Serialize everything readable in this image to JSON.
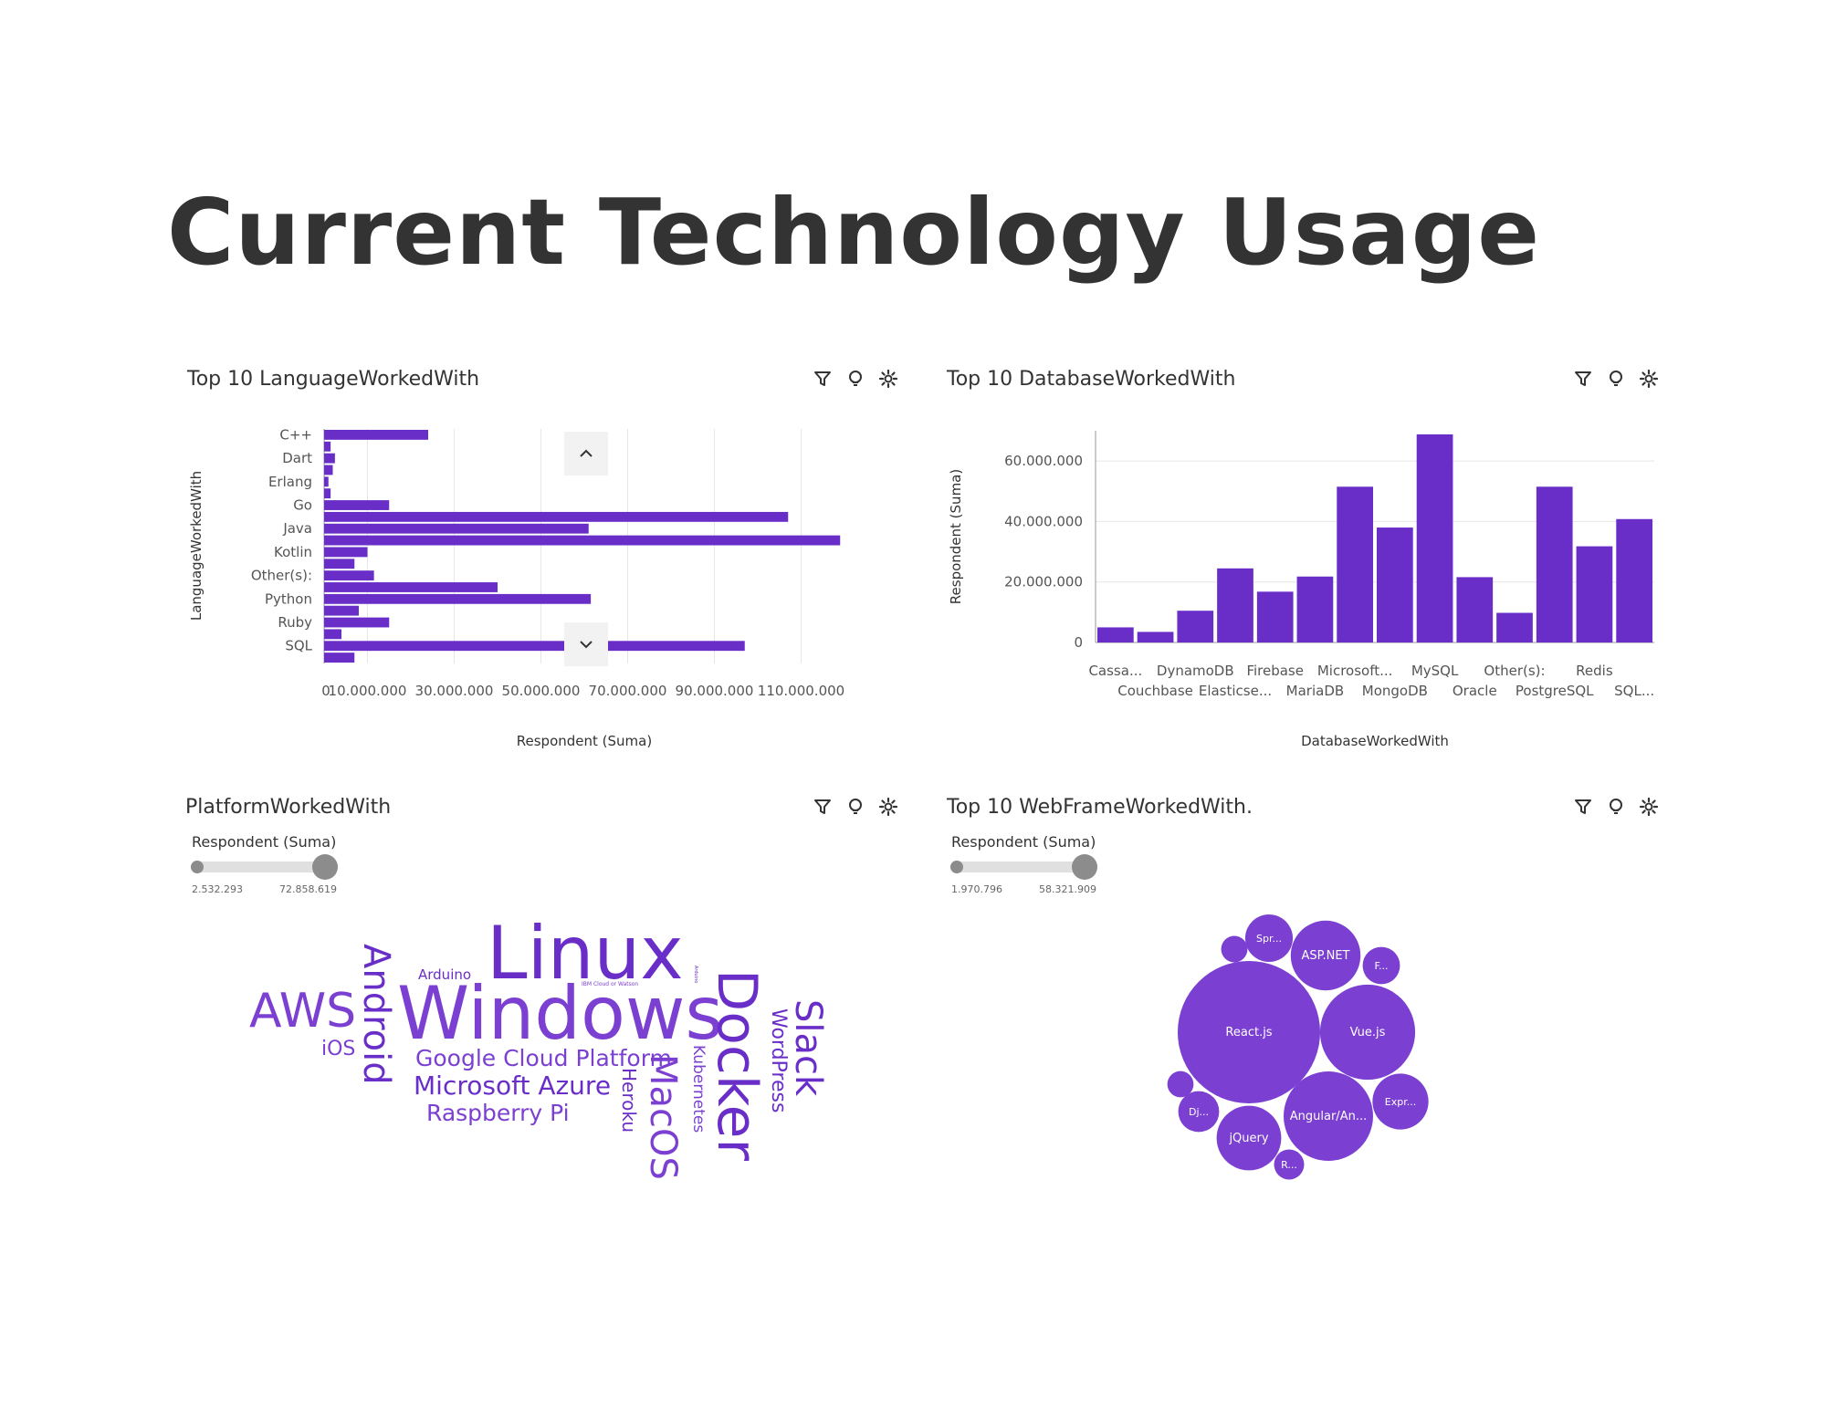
{
  "page": {
    "title": "Current Technology Usage"
  },
  "colors": {
    "accent": "#6a2ec8",
    "accent_light": "#7b3fd1",
    "grid": "#e6e6e6",
    "axis": "#999999"
  },
  "icons": [
    "filter-icon",
    "lightbulb-icon",
    "settings-gear-icon"
  ],
  "chart_data": [
    {
      "type": "bar",
      "orientation": "horizontal",
      "title": "Top 10 LanguageWorkedWith",
      "xlabel": "Respondent (Suma)",
      "ylabel": "LanguageWorkedWith",
      "categories": [
        "C++",
        "",
        "Dart",
        "",
        "Erlang",
        "",
        "Go",
        "",
        "Java",
        "",
        "Kotlin",
        "",
        "Other(s):",
        "",
        "Python",
        "",
        "Ruby",
        "",
        "SQL",
        ""
      ],
      "values": [
        24000000,
        1500000,
        2500000,
        2000000,
        1000000,
        1500000,
        15000000,
        107000000,
        61000000,
        119000000,
        10000000,
        7000000,
        11500000,
        40000000,
        61500000,
        8000000,
        15000000,
        4000000,
        97000000,
        7000000
      ],
      "xlim": [
        0,
        120000000
      ],
      "xticks": [
        0,
        10000000,
        30000000,
        50000000,
        70000000,
        90000000,
        110000000
      ],
      "xtick_labels": [
        "0",
        "10.000.000",
        "30.000.000",
        "50.000.000",
        "70.000.000",
        "90.000.000",
        "110.000.000"
      ],
      "grid": "vertical"
    },
    {
      "type": "bar",
      "title": "Top 10 DatabaseWorkedWith",
      "xlabel": "DatabaseWorkedWith",
      "ylabel": "Respondent (Suma)",
      "categories": [
        "Cassa...",
        "Couchbase",
        "DynamoDB",
        "Elasticse...",
        "Firebase",
        "MariaDB",
        "Microsoft...",
        "MongoDB",
        "MySQL",
        "Oracle",
        "Other(s):",
        "PostgreSQL",
        "Redis",
        "SQL..."
      ],
      "values": [
        5000000,
        3500000,
        10500000,
        24500000,
        16800000,
        21800000,
        51500000,
        38000000,
        68800000,
        21600000,
        9800000,
        51500000,
        31800000,
        40800000
      ],
      "ylim": [
        0,
        70000000
      ],
      "yticks": [
        0,
        20000000,
        40000000,
        60000000
      ],
      "ytick_labels": [
        "0",
        "20.000.000",
        "40.000.000",
        "60.000.000"
      ],
      "grid": "horizontal"
    },
    {
      "type": "wordcloud",
      "title": "PlatformWorkedWith",
      "size_label": "Respondent (Suma)",
      "size_min": "2.532.293",
      "size_max": "72.858.619",
      "words": [
        "Linux",
        "Windows",
        "Docker",
        "AWS",
        "Android",
        "MacOS",
        "Slack",
        "Google Cloud Platform",
        "Microsoft Azure",
        "Raspberry Pi",
        "WordPress",
        "Kubernetes",
        "Heroku",
        "iOS",
        "Arduino",
        "IBM Cloud or Watson",
        "Arduino"
      ]
    },
    {
      "type": "bubble",
      "title": "Top 10 WebFrameWorkedWith.",
      "size_label": "Respondent (Suma)",
      "size_min": "1.970.796",
      "size_max": "58.321.909",
      "bubbles": [
        {
          "label": "React.js",
          "value": 58321909
        },
        {
          "label": "Vue.js",
          "value": 26000000
        },
        {
          "label": "Angular/An...",
          "value": 23000000
        },
        {
          "label": "ASP.NET",
          "value": 14000000
        },
        {
          "label": "jQuery",
          "value": 12000000
        },
        {
          "label": "Expr...",
          "value": 9000000
        },
        {
          "label": "Spr...",
          "value": 6500000
        },
        {
          "label": "F...",
          "value": 4000000
        },
        {
          "label": "Dj...",
          "value": 4800000
        },
        {
          "label": "R...",
          "value": 2600000
        },
        {
          "label": "",
          "value": 2000000
        },
        {
          "label": "",
          "value": 1970796
        }
      ]
    }
  ]
}
